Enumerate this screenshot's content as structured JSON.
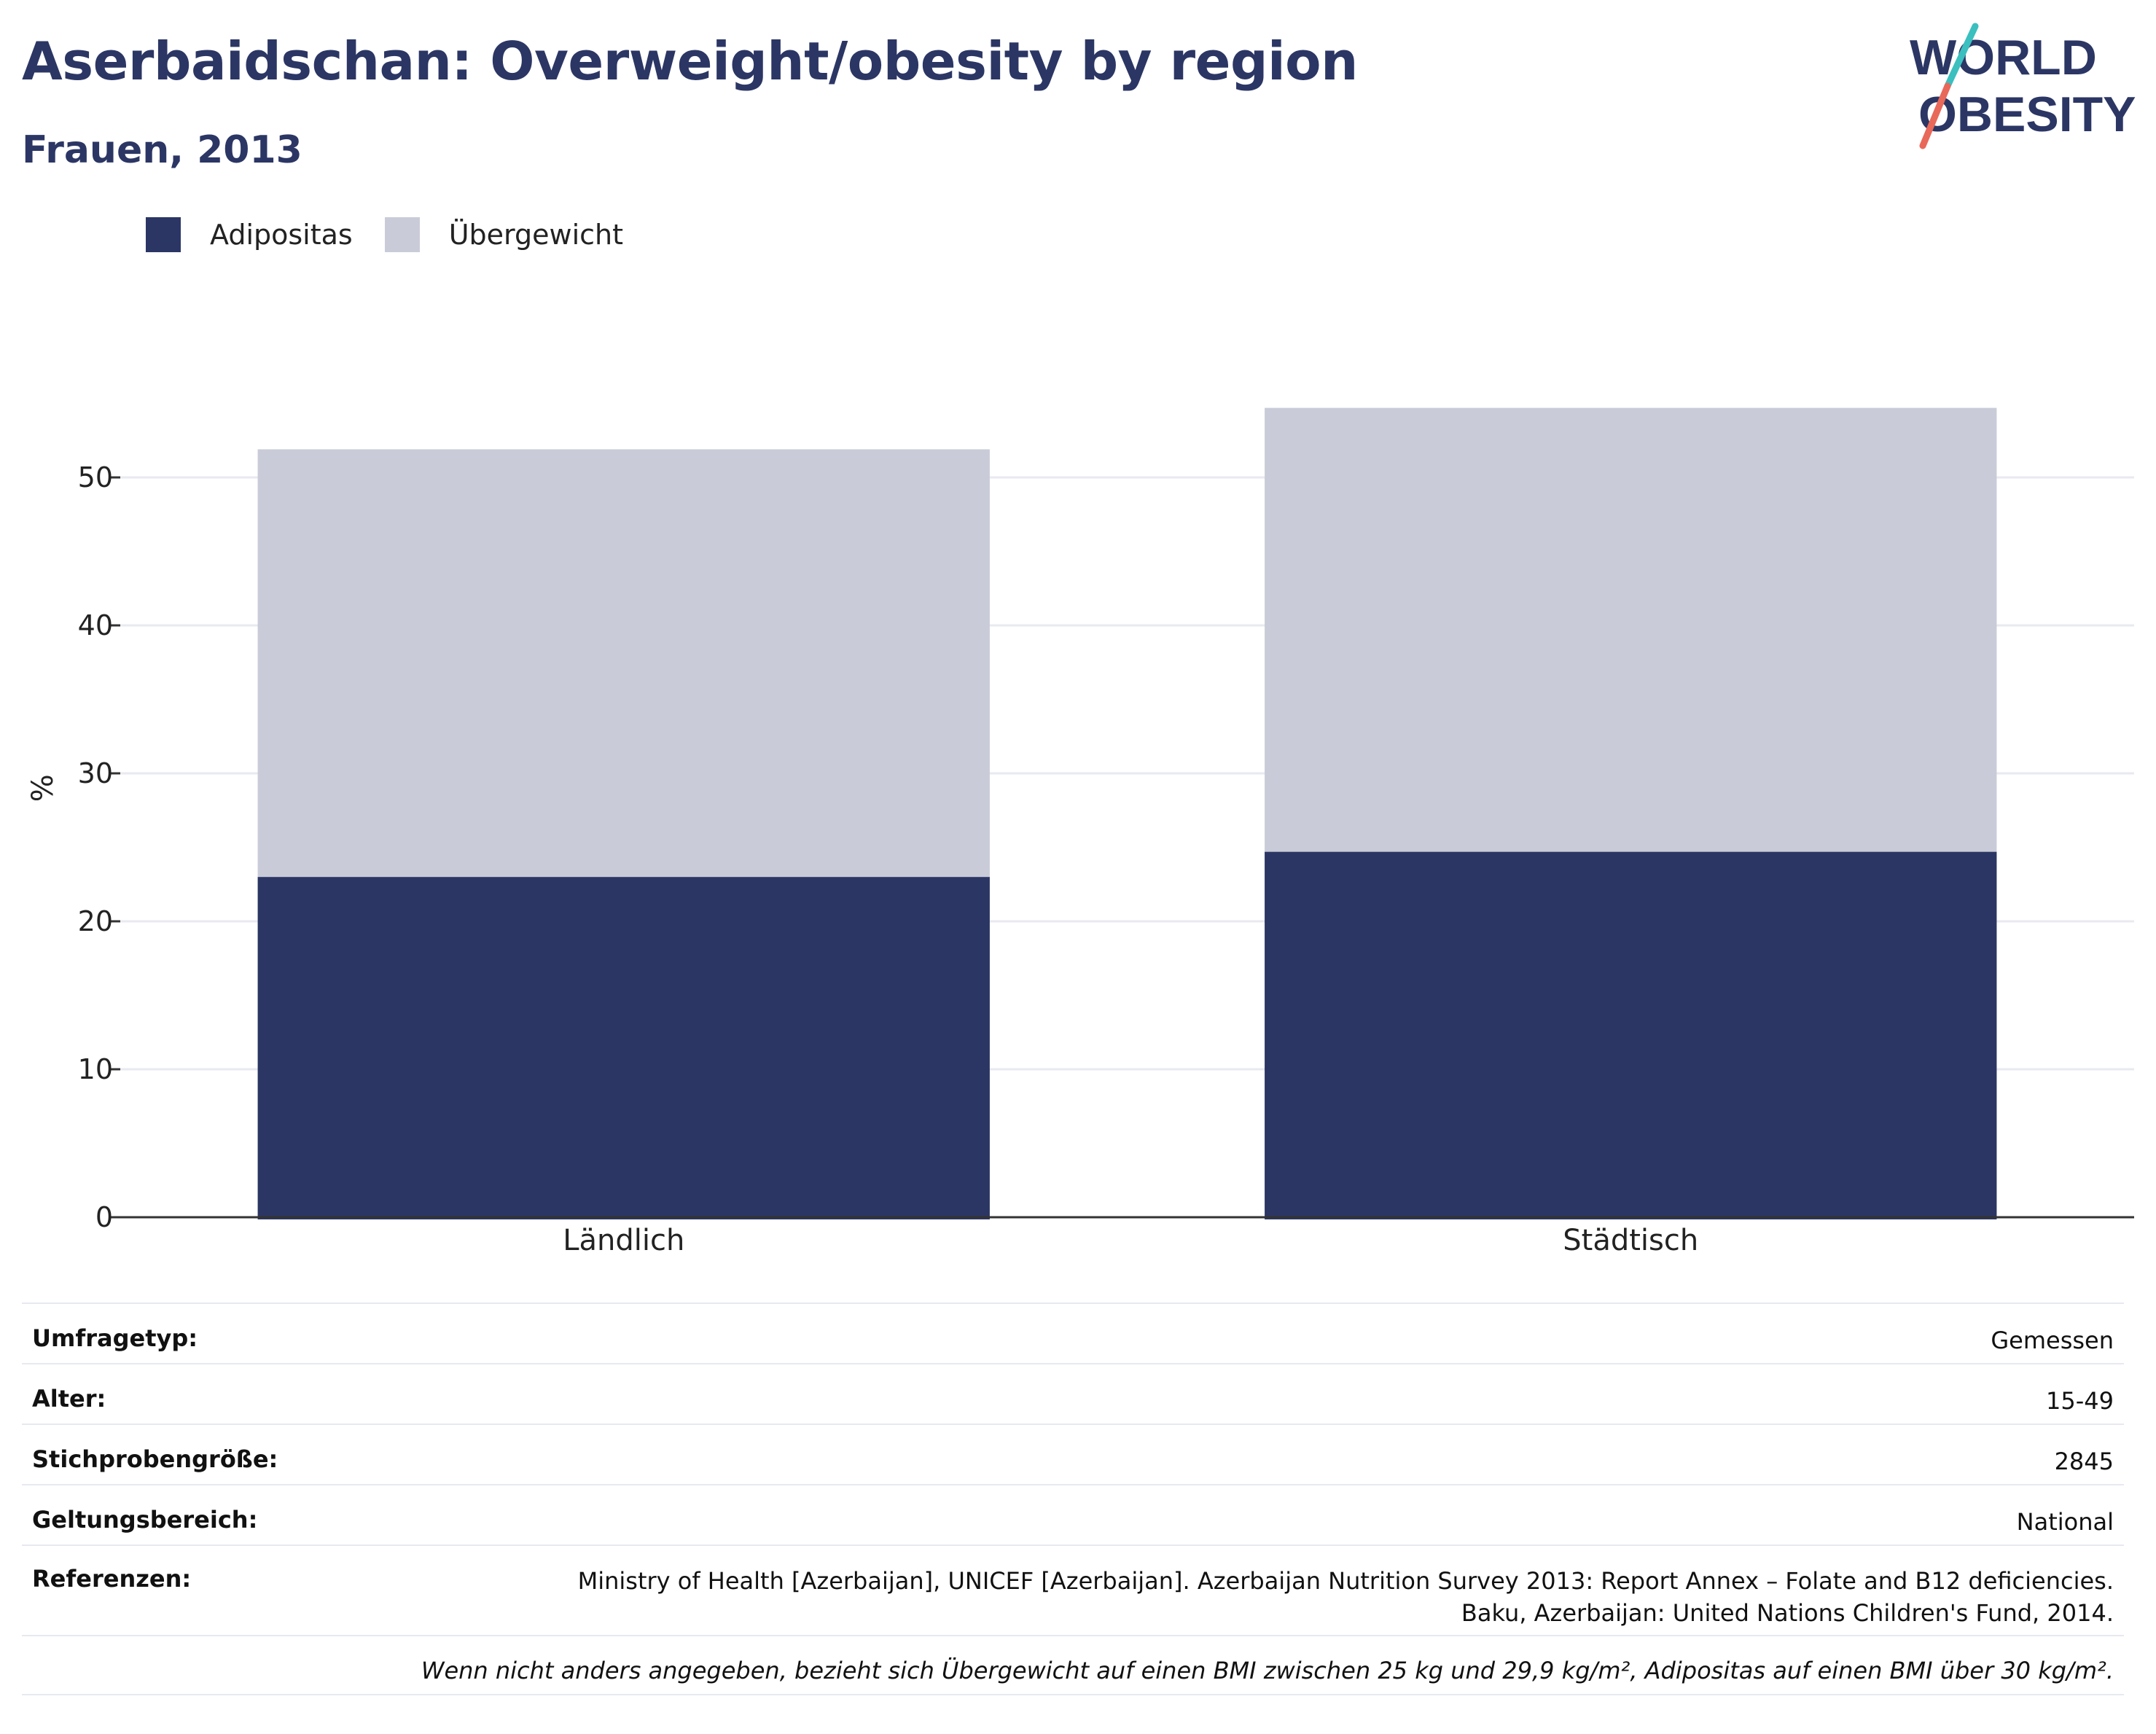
{
  "header": {
    "title": "Aserbaidschan: Overweight/obesity by region",
    "subtitle": "Frauen, 2013"
  },
  "logo": {
    "line1": "WORLD",
    "line2": "OBESITY",
    "colors": {
      "text": "#2b3664",
      "slash_top": "#3bbfbf",
      "slash_bottom": "#e8685a"
    }
  },
  "legend": [
    {
      "label": "Adipositas",
      "color": "#2b3664"
    },
    {
      "label": "Übergewicht",
      "color": "#c9ccd8"
    }
  ],
  "chart_data": {
    "type": "bar",
    "stacked": true,
    "categories": [
      "Ländlich",
      "Städtisch"
    ],
    "series": [
      {
        "name": "Adipositas",
        "color": "#2b3664",
        "values": [
          23.0,
          24.7
        ]
      },
      {
        "name": "Übergewicht",
        "color": "#c9ccd8",
        "values": [
          28.9,
          30.0
        ]
      }
    ],
    "ylabel": "%",
    "xlabel": "",
    "ylim": [
      0,
      60
    ],
    "yticks": [
      0,
      10,
      20,
      30,
      40,
      50
    ],
    "grid": true
  },
  "info_table": {
    "rows": [
      {
        "label": "Umfragetyp:",
        "value": "Gemessen"
      },
      {
        "label": "Alter:",
        "value": "15-49"
      },
      {
        "label": "Stichprobengröße:",
        "value": "2845"
      },
      {
        "label": "Geltungsbereich:",
        "value": "National"
      },
      {
        "label": "Referenzen:",
        "value_line1": "Ministry of Health [Azerbaijan], UNICEF [Azerbaijan]. Azerbaijan Nutrition Survey 2013: Report Annex – Folate and B12 deficiencies.",
        "value_line2": "Baku, Azerbaijan: United Nations Children's Fund, 2014."
      }
    ],
    "note": "Wenn nicht anders angegeben, bezieht sich Übergewicht auf einen BMI zwischen 25 kg und 29,9 kg/m², Adipositas auf einen BMI über 30 kg/m²."
  }
}
